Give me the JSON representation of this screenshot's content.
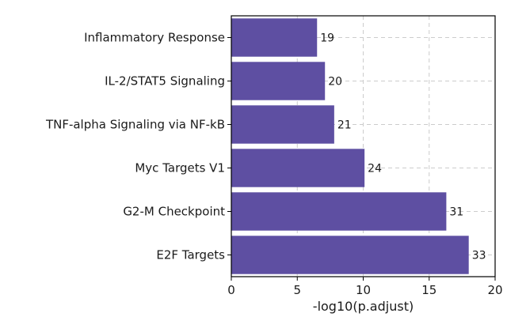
{
  "chart_data": {
    "type": "bar",
    "orientation": "horizontal",
    "categories": [
      "Inflammatory Response",
      "IL-2/STAT5 Signaling",
      "TNF-alpha Signaling via NF-kB",
      "Myc Targets V1",
      "G2-M Checkpoint",
      "E2F Targets"
    ],
    "values": [
      6.5,
      7.1,
      7.8,
      10.1,
      16.3,
      18.0
    ],
    "bar_labels": [
      "19",
      "20",
      "21",
      "24",
      "31",
      "33"
    ],
    "xlabel": "-log10(p.adjust)",
    "ylabel": "",
    "xlim": [
      0,
      20
    ],
    "xticks": [
      "0",
      "5",
      "10",
      "15",
      "20"
    ],
    "grid": true,
    "bar_color": "#5e4fa2"
  }
}
